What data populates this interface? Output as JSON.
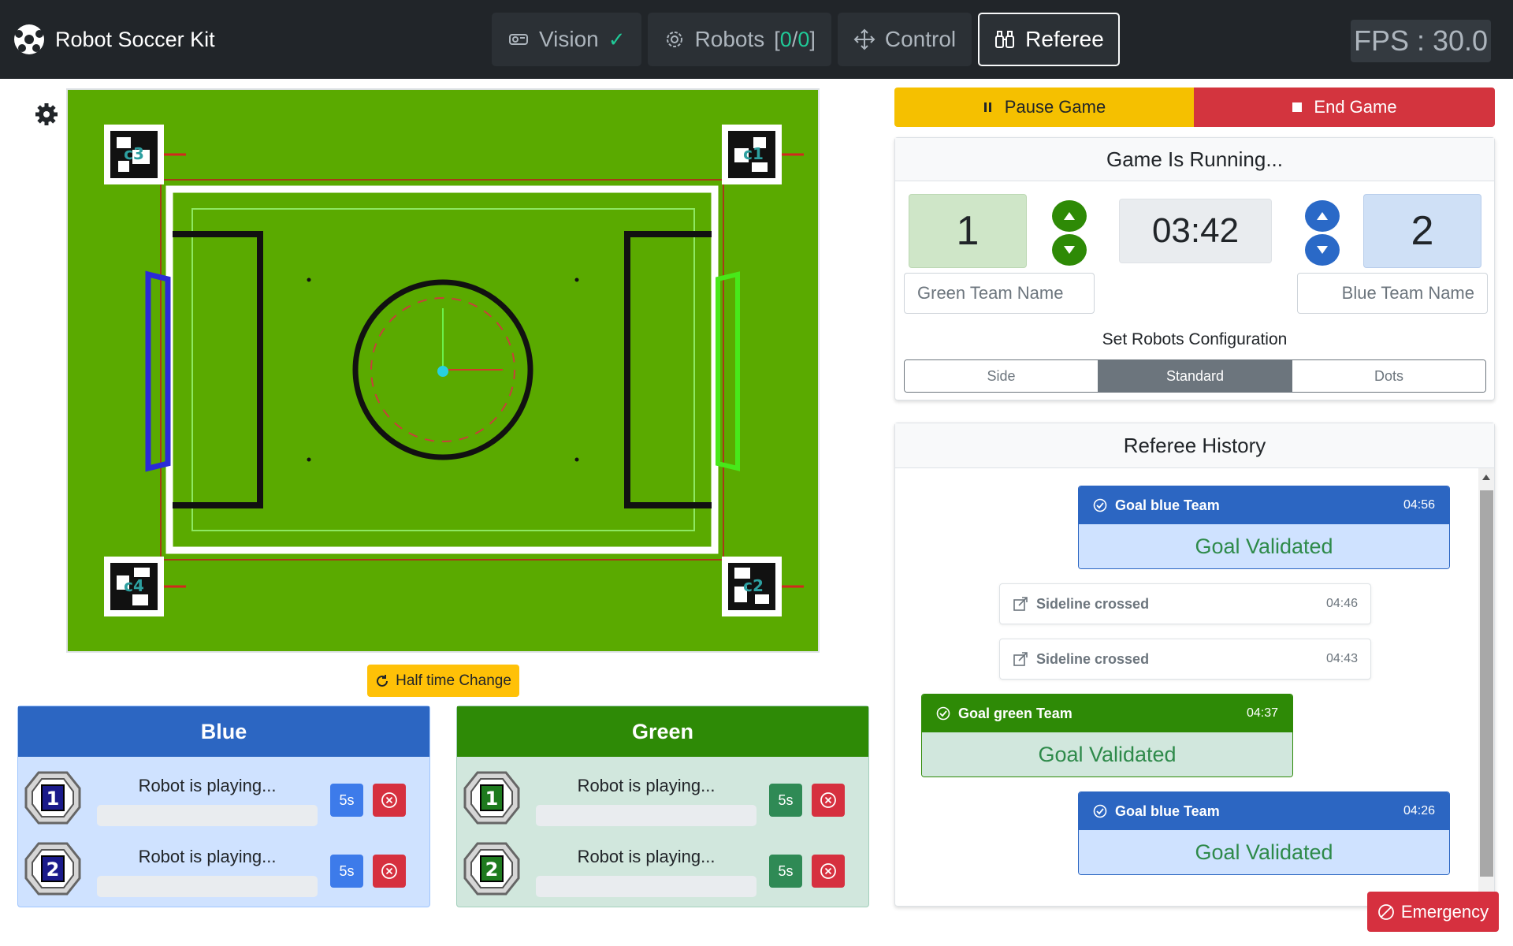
{
  "app": {
    "title": "Robot Soccer Kit"
  },
  "nav": {
    "tabs": [
      {
        "label": "Vision",
        "icon": "camera-icon"
      },
      {
        "label": "Robots",
        "icon": "gear-icon",
        "count_open": "[",
        "count_a": "0",
        "count_sep": "/",
        "count_b": "0",
        "count_close": "]"
      },
      {
        "label": "Control",
        "icon": "move-arrows-icon"
      },
      {
        "label": "Referee",
        "icon": "binoculars-icon"
      }
    ],
    "check_glyph": "✓",
    "fps": "FPS : 30.0"
  },
  "field": {
    "markers": [
      "c3",
      "c1",
      "c4",
      "c2"
    ]
  },
  "half_time": {
    "label": "Half time Change"
  },
  "teams": {
    "blue": {
      "title": "Blue",
      "robots": [
        {
          "number": "1",
          "status": "Robot is playing...",
          "penalty": "5s"
        },
        {
          "number": "2",
          "status": "Robot is playing...",
          "penalty": "5s"
        }
      ]
    },
    "green": {
      "title": "Green",
      "robots": [
        {
          "number": "1",
          "status": "Robot is playing...",
          "penalty": "5s"
        },
        {
          "number": "2",
          "status": "Robot is playing...",
          "penalty": "5s"
        }
      ]
    }
  },
  "game": {
    "pause_label": "Pause Game",
    "end_label": "End Game",
    "status": "Game Is Running...",
    "green_score": "1",
    "blue_score": "2",
    "timer": "03:42",
    "green_name_placeholder": "Green Team Name",
    "blue_name_placeholder": "Blue Team Name",
    "config_label": "Set Robots Configuration",
    "config_options": [
      "Side",
      "Standard",
      "Dots"
    ],
    "config_selected": "Standard"
  },
  "history": {
    "title": "Referee History",
    "events": [
      {
        "type": "goal-blue",
        "title": "Goal blue Team",
        "time": "04:56",
        "result": "Goal Validated"
      },
      {
        "type": "sideline",
        "title": "Sideline crossed",
        "time": "04:46"
      },
      {
        "type": "sideline",
        "title": "Sideline crossed",
        "time": "04:43"
      },
      {
        "type": "goal-green",
        "title": "Goal green Team",
        "time": "04:37",
        "result": "Goal Validated"
      },
      {
        "type": "goal-blue",
        "title": "Goal blue Team",
        "time": "04:26",
        "result": "Goal Validated"
      }
    ]
  },
  "emergency": {
    "label": "Emergency"
  },
  "colors": {
    "navbar": "#212529",
    "blue_team": "#2c66c2",
    "green_team": "#2e8a06",
    "pause": "#f5c000",
    "danger": "#d6303f",
    "field": "#5aaa00"
  }
}
